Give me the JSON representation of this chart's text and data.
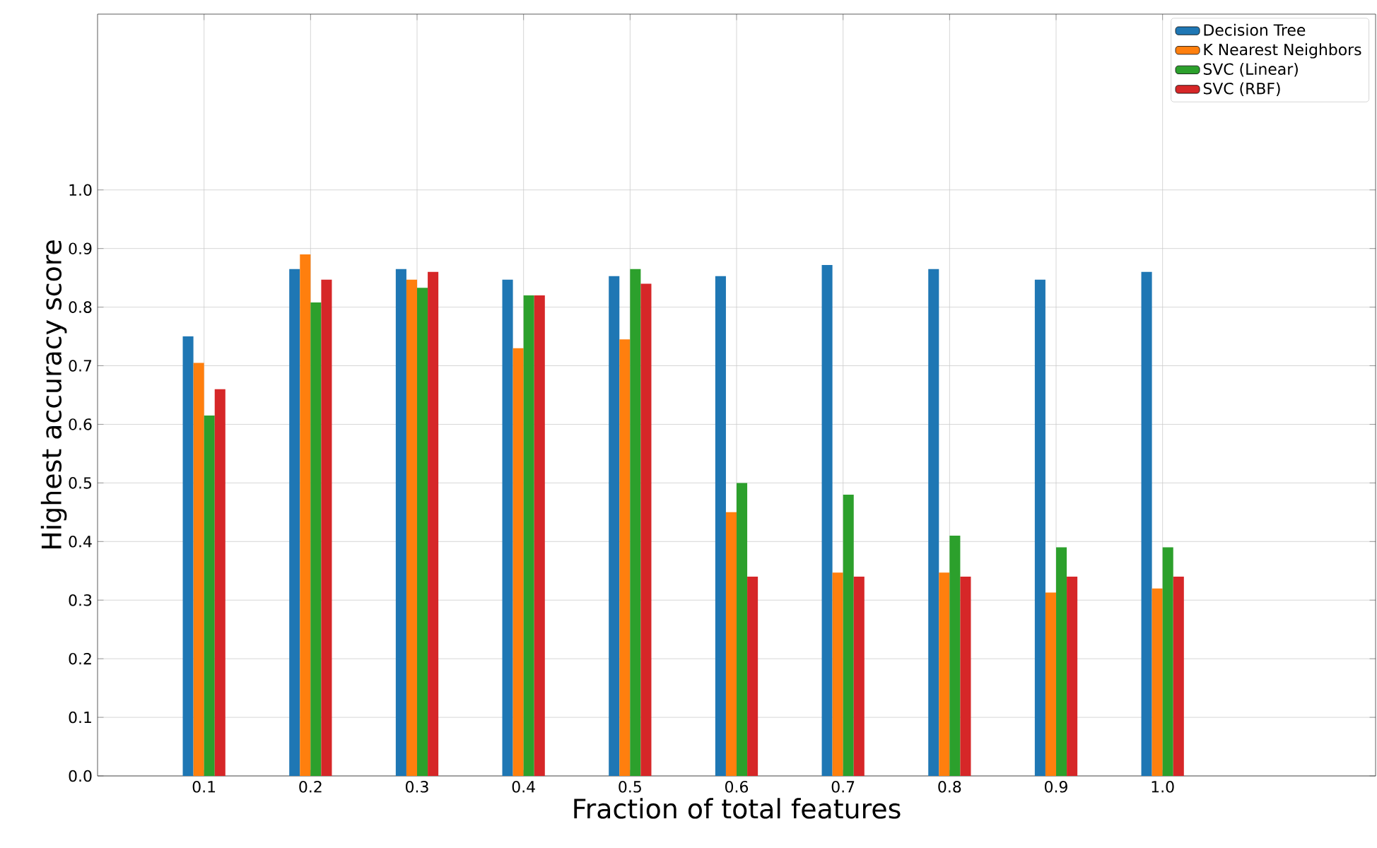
{
  "chart_data": {
    "type": "bar",
    "xlabel": "Fraction of total features",
    "ylabel": "Highest accuracy score",
    "x": [
      0.1,
      0.2,
      0.3,
      0.4,
      0.5,
      0.6,
      0.7,
      0.8,
      0.9,
      1.0
    ],
    "series": [
      {
        "name": "Decision Tree",
        "color": "#1f77b4",
        "values": [
          0.75,
          0.865,
          0.865,
          0.847,
          0.853,
          0.853,
          0.872,
          0.865,
          0.847,
          0.86
        ]
      },
      {
        "name": "K Nearest Neighbors",
        "color": "#ff7f0e",
        "values": [
          0.705,
          0.89,
          0.847,
          0.73,
          0.745,
          0.45,
          0.347,
          0.347,
          0.313,
          0.32
        ]
      },
      {
        "name": "SVC (Linear)",
        "color": "#2ca02c",
        "values": [
          0.615,
          0.808,
          0.833,
          0.82,
          0.865,
          0.5,
          0.48,
          0.41,
          0.39,
          0.39
        ]
      },
      {
        "name": "SVC (RBF)",
        "color": "#d62728",
        "values": [
          0.66,
          0.847,
          0.86,
          0.82,
          0.84,
          0.34,
          0.34,
          0.34,
          0.34,
          0.34
        ]
      }
    ],
    "xlim": [
      0,
      1.2
    ],
    "ylim": [
      0,
      1.3
    ],
    "xticks": [
      {
        "value": 0.1,
        "label": "0.1"
      },
      {
        "value": 0.2,
        "label": "0.2"
      },
      {
        "value": 0.3,
        "label": "0.3"
      },
      {
        "value": 0.4,
        "label": "0.4"
      },
      {
        "value": 0.5,
        "label": "0.5"
      },
      {
        "value": 0.6,
        "label": "0.6"
      },
      {
        "value": 0.7,
        "label": "0.7"
      },
      {
        "value": 0.8,
        "label": "0.8"
      },
      {
        "value": 0.9,
        "label": "0.9"
      },
      {
        "value": 1.0,
        "label": "1.0"
      }
    ],
    "yticks": [
      {
        "value": 0,
        "label": "0.0"
      },
      {
        "value": 0.1,
        "label": "0.1"
      },
      {
        "value": 0.2,
        "label": "0.2"
      },
      {
        "value": 0.3,
        "label": "0.3"
      },
      {
        "value": 0.4,
        "label": "0.4"
      },
      {
        "value": 0.5,
        "label": "0.5"
      },
      {
        "value": 0.6,
        "label": "0.6"
      },
      {
        "value": 0.7,
        "label": "0.7"
      },
      {
        "value": 0.8,
        "label": "0.8"
      },
      {
        "value": 0.9,
        "label": "0.9"
      },
      {
        "value": 1.0,
        "label": "1.0"
      }
    ],
    "grid": true,
    "legend": "top right"
  }
}
